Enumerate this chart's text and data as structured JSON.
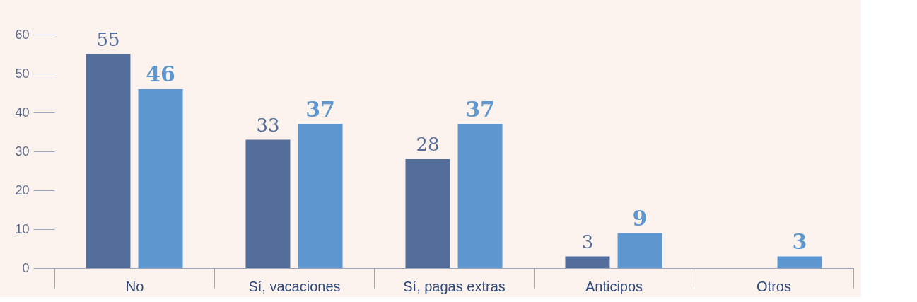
{
  "chart_data": {
    "type": "bar",
    "categories": [
      "No",
      "Sí, vacaciones",
      "Sí, pagas extras",
      "Anticipos",
      "Otros"
    ],
    "series": [
      {
        "color": "#546e9b",
        "values": [
          55,
          33,
          28,
          3,
          null
        ]
      },
      {
        "color": "#5e97d0",
        "values": [
          46,
          37,
          37,
          9,
          3
        ]
      }
    ],
    "ylim": [
      0,
      60
    ],
    "yticks": [
      0,
      10,
      20,
      30,
      40,
      50,
      60
    ],
    "grid": false,
    "data_labels": true
  }
}
